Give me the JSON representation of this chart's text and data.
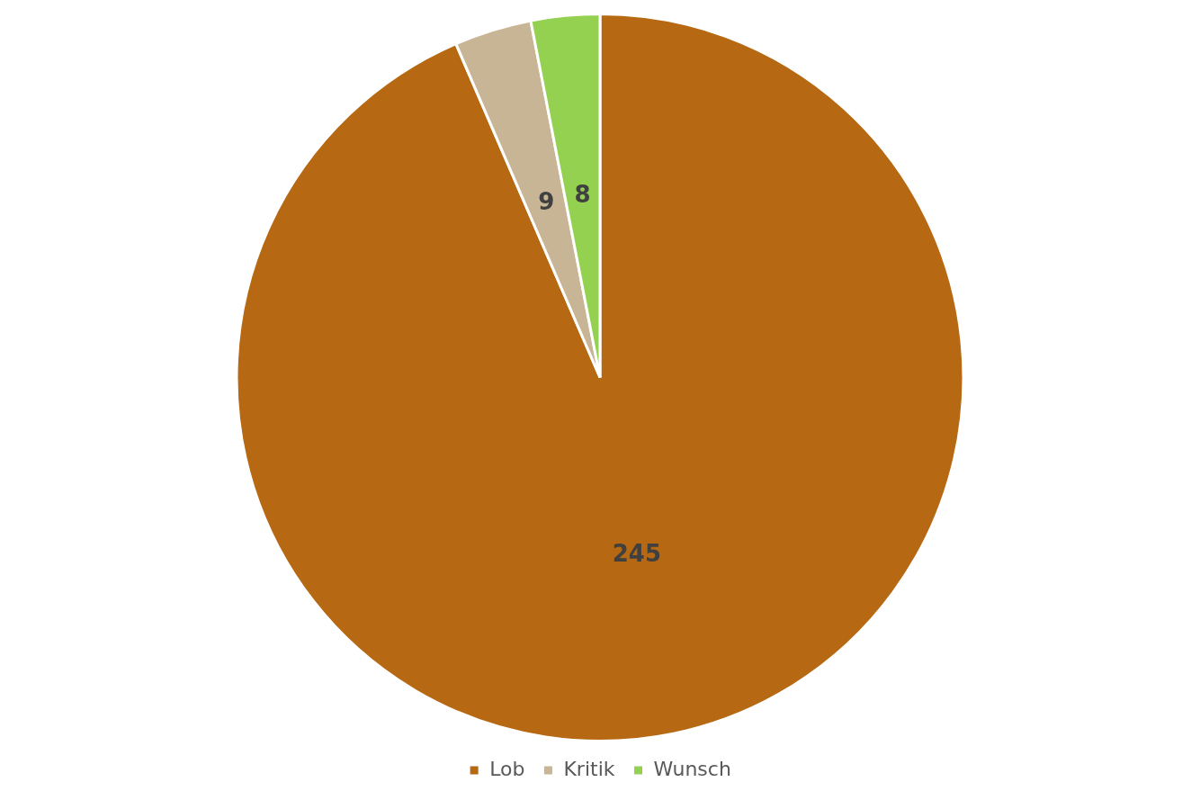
{
  "chart_data": {
    "type": "pie",
    "categories": [
      "Lob",
      "Kritik",
      "Wunsch"
    ],
    "values": [
      245,
      9,
      8
    ],
    "colors": [
      "#b66812",
      "#c8b595",
      "#94d150"
    ],
    "data_labels": true,
    "legend": "bottom"
  }
}
